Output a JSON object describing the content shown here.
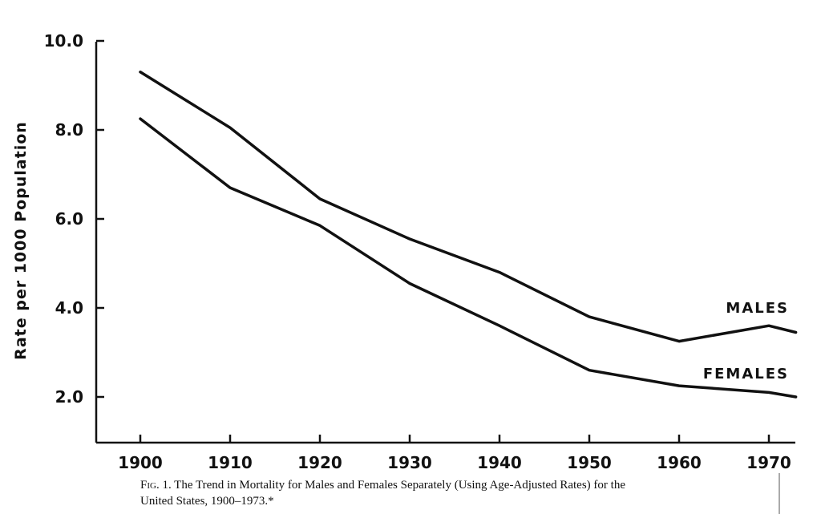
{
  "chart_data": {
    "type": "line",
    "ylabel": "Rate per 1000 Population",
    "ylim": [
      1.0,
      10.0
    ],
    "yticks": [
      2.0,
      4.0,
      6.0,
      8.0,
      10.0
    ],
    "ytick_labels": [
      "2.0",
      "4.0",
      "6.0",
      "8.0",
      "10.0"
    ],
    "xlim": [
      1900,
      1973
    ],
    "xticks": [
      1900,
      1910,
      1920,
      1930,
      1940,
      1950,
      1960,
      1970
    ],
    "xtick_labels": [
      "1900",
      "1910",
      "1920",
      "1930",
      "1940",
      "1950",
      "1960",
      "1970"
    ],
    "grid": false,
    "series": [
      {
        "name": "MALES",
        "x": [
          1900,
          1910,
          1920,
          1930,
          1940,
          1950,
          1960,
          1970,
          1973
        ],
        "y": [
          9.3,
          8.05,
          6.45,
          5.55,
          4.8,
          3.8,
          3.25,
          3.6,
          3.45
        ]
      },
      {
        "name": "FEMALES",
        "x": [
          1900,
          1910,
          1920,
          1930,
          1940,
          1950,
          1960,
          1970,
          1973
        ],
        "y": [
          8.25,
          6.7,
          5.85,
          4.55,
          3.6,
          2.6,
          2.25,
          2.1,
          2.0
        ]
      }
    ]
  },
  "caption": {
    "prefix": "Fig. 1.",
    "text": " The Trend in Mortality for Males and Females Separately (Using Age-Adjusted Rates) for the United States, 1900–1973.*"
  }
}
